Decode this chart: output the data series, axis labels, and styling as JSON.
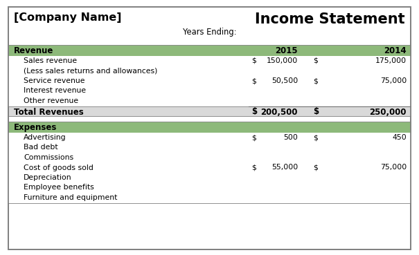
{
  "company_name": "[Company Name]",
  "title": "Income Statement",
  "subtitle": "Years Ending:",
  "header_bg": "#8db97a",
  "total_bg": "#d9d9d9",
  "white_bg": "#ffffff",
  "outer_border": "#7f7f7f",
  "year1": "2015",
  "year2": "2014",
  "revenue_rows": [
    {
      "label": "Sales revenue",
      "has_vals": true,
      "val1": "150,000",
      "val2": "175,000"
    },
    {
      "label": "(Less sales returns and allowances)",
      "has_vals": false,
      "val1": "",
      "val2": ""
    },
    {
      "label": "Service revenue",
      "has_vals": true,
      "val1": "50,500",
      "val2": "75,000"
    },
    {
      "label": "Interest revenue",
      "has_vals": false,
      "val1": "",
      "val2": ""
    },
    {
      "label": "Other revenue",
      "has_vals": false,
      "val1": "",
      "val2": ""
    }
  ],
  "total_revenue": {
    "label": "Total Revenues",
    "val1": "200,500",
    "val2": "250,000"
  },
  "expense_rows": [
    {
      "label": "Advertising",
      "has_vals": true,
      "val1": "500",
      "val2": "450"
    },
    {
      "label": "Bad debt",
      "has_vals": false,
      "val1": "",
      "val2": ""
    },
    {
      "label": "Commissions",
      "has_vals": false,
      "val1": "",
      "val2": ""
    },
    {
      "label": "Cost of goods sold",
      "has_vals": true,
      "val1": "55,000",
      "val2": "75,000"
    },
    {
      "label": "Depreciation",
      "has_vals": false,
      "val1": "",
      "val2": ""
    },
    {
      "label": "Employee benefits",
      "has_vals": false,
      "val1": "",
      "val2": ""
    },
    {
      "label": "Furniture and equipment",
      "has_vals": false,
      "val1": "",
      "val2": ""
    }
  ],
  "font_family": "DejaVu Sans",
  "header_fontsize": 8.5,
  "body_fontsize": 7.8,
  "title_fontsize": 15,
  "company_fontsize": 11.5
}
